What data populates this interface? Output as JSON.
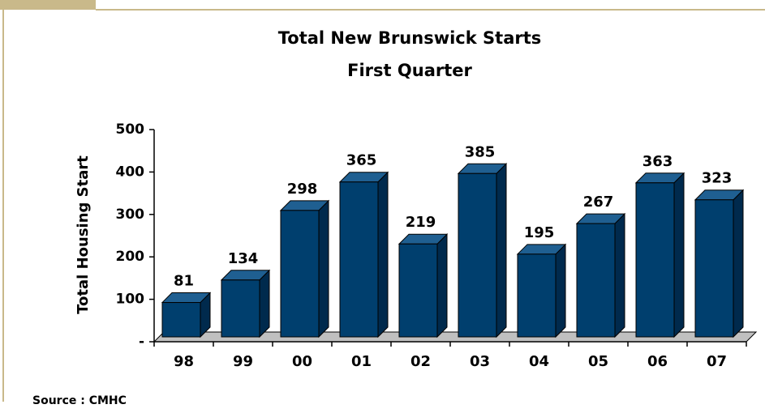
{
  "chart_data": {
    "type": "bar3d",
    "title": "Total New Brunswick Starts",
    "subtitle": "First Quarter",
    "y_label": "Total Housing Start",
    "source": "Source : CMHC",
    "categories": [
      "98",
      "99",
      "00",
      "01",
      "02",
      "03",
      "04",
      "05",
      "06",
      "07"
    ],
    "values": [
      81,
      134,
      298,
      365,
      219,
      385,
      195,
      267,
      363,
      323
    ],
    "color": "#003f6e",
    "ylim": [
      0,
      500
    ],
    "yticks": [
      {
        "value": 0,
        "label": "-"
      },
      100,
      200,
      300,
      400,
      500
    ]
  }
}
